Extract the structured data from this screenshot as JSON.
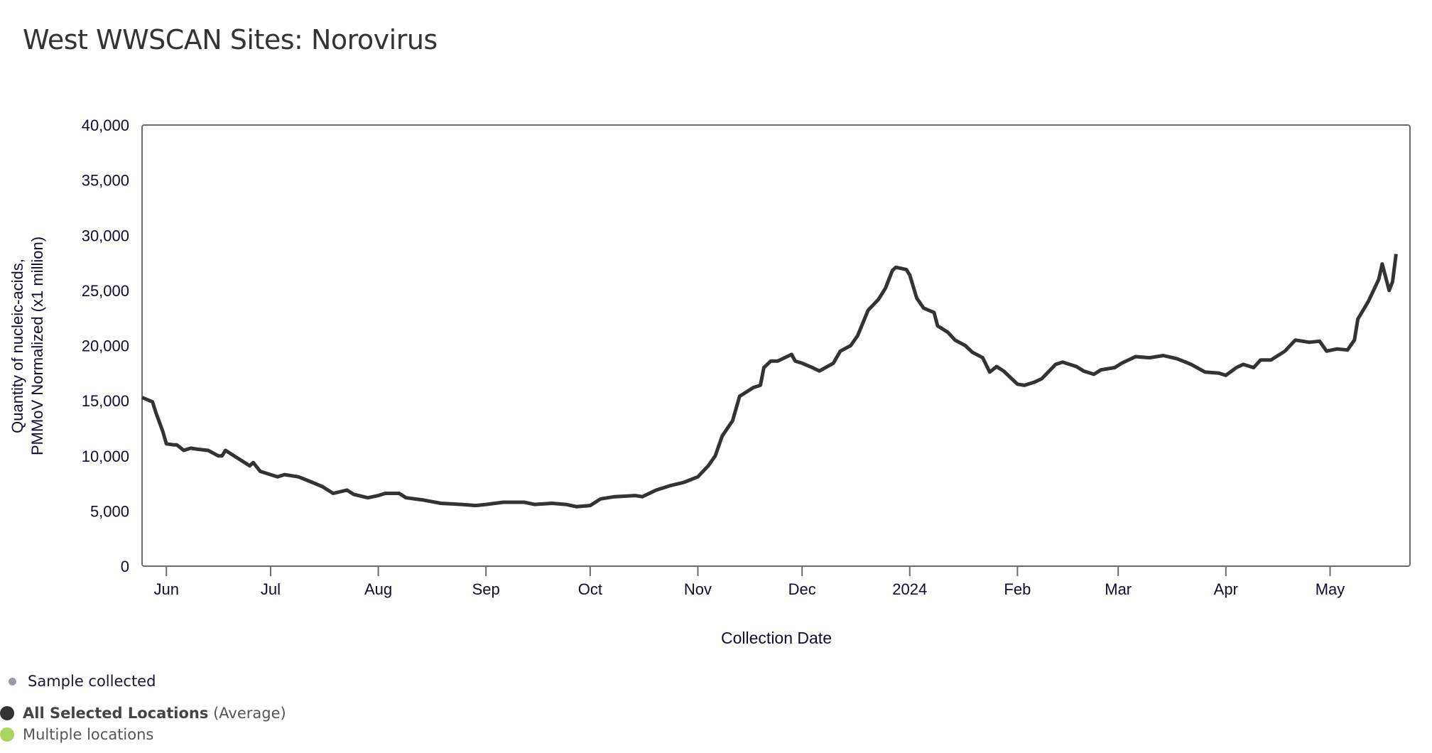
{
  "title": "West WWSCAN Sites: Norovirus",
  "legend": {
    "sample": {
      "label": "Sample collected",
      "color": "#9a9aa8"
    },
    "average": {
      "label_bold": "All Selected Locations",
      "label_rest": "(Average)",
      "color": "#333333"
    },
    "multiple": {
      "label": "Multiple locations",
      "color": "#a8d65c"
    }
  },
  "chart_data": {
    "type": "line",
    "title": "West WWSCAN Sites: Norovirus",
    "xlabel": "Collection Date",
    "ylabel_lines": [
      "Quantity of nucleic-acids,",
      "PMMoV Normalized (x1 million)"
    ],
    "x_unit": "days since 2023-06-01",
    "xlim": [
      -7,
      358
    ],
    "ylim": [
      0,
      40000
    ],
    "yticks": [
      0,
      5000,
      10000,
      15000,
      20000,
      25000,
      30000,
      35000,
      40000
    ],
    "ytick_labels": [
      "0",
      "5,000",
      "10,000",
      "15,000",
      "20,000",
      "25,000",
      "30,000",
      "35,000",
      "40,000"
    ],
    "xticks": [
      0,
      30,
      61,
      92,
      122,
      153,
      183,
      214,
      245,
      274,
      305,
      335
    ],
    "xtick_labels": [
      "Jun",
      "Jul",
      "Aug",
      "Sep",
      "Oct",
      "Nov",
      "Dec",
      "2024",
      "Feb",
      "Mar",
      "Apr",
      "May"
    ],
    "grid": false,
    "series": [
      {
        "name": "All Selected Locations (Average)",
        "color": "#333333",
        "x": [
          -7,
          -4,
          -3,
          -1,
          0,
          2,
          3,
          5,
          7,
          9,
          12,
          15,
          16,
          17,
          22,
          24,
          25,
          27,
          30,
          32,
          34,
          38,
          42,
          45,
          48,
          52,
          54,
          58,
          61,
          63,
          67,
          69,
          74,
          79,
          85,
          89,
          92,
          97,
          103,
          106,
          111,
          115,
          118,
          122,
          125,
          129,
          135,
          137,
          141,
          145,
          149,
          153,
          156,
          158,
          160,
          163,
          165,
          169,
          171,
          172,
          174,
          176,
          180,
          181,
          183,
          186,
          188,
          192,
          194,
          197,
          199,
          202,
          205,
          207,
          209,
          210,
          213,
          214,
          216,
          218,
          221,
          222,
          225,
          227,
          230,
          232,
          235,
          237,
          239,
          241,
          243,
          245,
          247,
          250,
          252,
          256,
          258,
          262,
          264,
          267,
          269,
          273,
          275,
          279,
          283,
          287,
          291,
          295,
          299,
          303,
          305,
          308,
          310,
          313,
          315,
          318,
          322,
          325,
          329,
          332,
          334,
          337,
          340,
          342,
          343,
          346,
          349,
          350,
          352,
          353,
          354
        ],
        "y": [
          15300,
          14900,
          13900,
          12200,
          11100,
          11000,
          11000,
          10500,
          10700,
          10600,
          10500,
          10000,
          10000,
          10500,
          9500,
          9100,
          9400,
          8600,
          8300,
          8100,
          8300,
          8100,
          7600,
          7200,
          6600,
          6900,
          6500,
          6200,
          6400,
          6600,
          6600,
          6200,
          6000,
          5700,
          5600,
          5500,
          5600,
          5800,
          5800,
          5600,
          5700,
          5600,
          5400,
          5500,
          6100,
          6300,
          6400,
          6300,
          6900,
          7300,
          7600,
          8100,
          9100,
          10000,
          11800,
          13200,
          15400,
          16200,
          16400,
          18000,
          18600,
          18600,
          19200,
          18600,
          18400,
          18000,
          17700,
          18400,
          19500,
          20000,
          20900,
          23200,
          24200,
          25200,
          26800,
          27100,
          26900,
          26400,
          24300,
          23400,
          23000,
          21800,
          21200,
          20500,
          20000,
          19400,
          18900,
          17600,
          18100,
          17700,
          17100,
          16500,
          16400,
          16700,
          17000,
          18300,
          18500,
          18100,
          17700,
          17400,
          17800,
          18000,
          18400,
          19000,
          18900,
          19100,
          18800,
          18300,
          17600,
          17500,
          17300,
          18000,
          18300,
          18000,
          18700,
          18700,
          19500,
          20500,
          20300,
          20400,
          19500,
          19700,
          19600,
          20500,
          22400,
          24000,
          26000,
          27400,
          25000,
          25800,
          28300
        ]
      }
    ]
  }
}
